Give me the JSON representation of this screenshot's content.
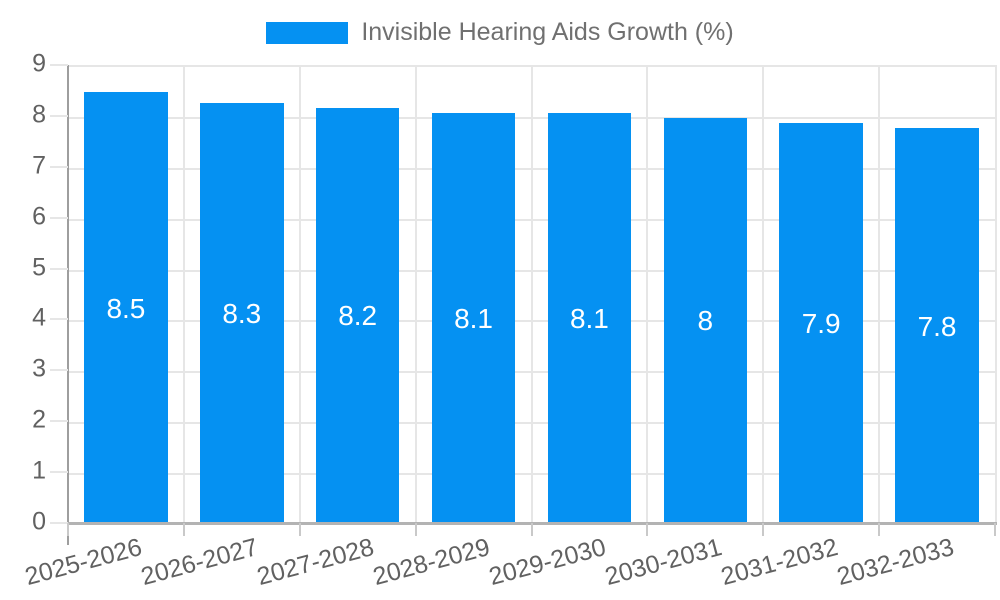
{
  "legend": {
    "label": "Invisible Hearing Aids Growth (%)"
  },
  "chart_data": {
    "type": "bar",
    "title": "Invisible Hearing Aids Growth (%)",
    "categories": [
      "2025-2026",
      "2026-2027",
      "2027-2028",
      "2028-2029",
      "2029-2030",
      "2030-2031",
      "2031-2032",
      "2032-2033"
    ],
    "values": [
      8.5,
      8.3,
      8.2,
      8.1,
      8.1,
      8,
      7.9,
      7.8
    ],
    "value_labels": [
      "8.5",
      "8.3",
      "8.2",
      "8.1",
      "8.1",
      "8",
      "7.9",
      "7.8"
    ],
    "xlabel": "",
    "ylabel": "",
    "ylim": [
      0,
      9
    ],
    "yticks": [
      0,
      1,
      2,
      3,
      4,
      5,
      6,
      7,
      8,
      9
    ],
    "grid": true,
    "legend_position": "top-center",
    "bar_color": "#0591f2"
  },
  "colors": {
    "bar": "#0591f2",
    "background": "#ffffff",
    "gridline": "#e6e6e6",
    "y_axis_line": "#9e9e9e",
    "x_axis_line": "#b3b3b3",
    "tick_label_text": "#616161",
    "legend_text": "#707070",
    "bar_value_text": "#ffffff"
  }
}
